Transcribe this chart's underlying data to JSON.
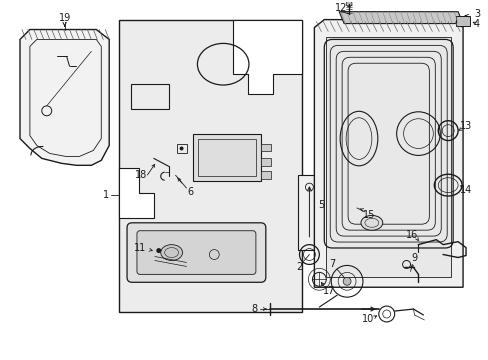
{
  "bg_color": "#ffffff",
  "lc": "#1a1a1a",
  "gray_light": "#e8e8e8",
  "gray_med": "#d0d0d0",
  "gray_dark": "#b0b0b0",
  "hatch_color": "#888888"
}
